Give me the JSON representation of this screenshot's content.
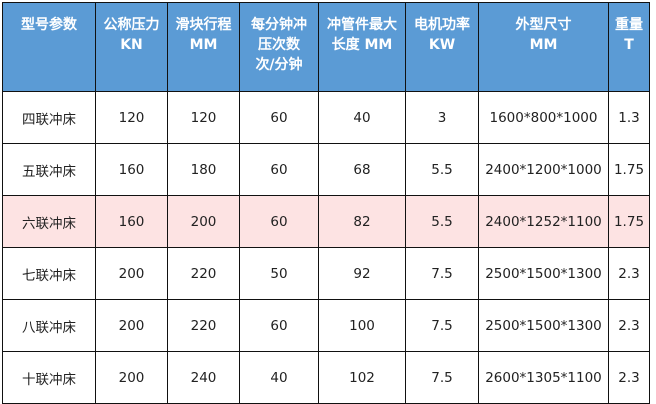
{
  "headers": [
    "型号参数",
    "公称压力\nKN",
    "滑块行程\nMM",
    "每分钟冲\n压次数\n次/分钟",
    "冲管件最大\n长度 MM",
    "电机功率\nKW",
    "外型尺寸\nMM",
    "重量\nT"
  ],
  "header_bg": "#5b9bd5",
  "highlight_bg": "#fde3e3",
  "rows": [
    [
      "四联冲床",
      "120",
      "120",
      "60",
      "40",
      "3",
      "1600*800*1000",
      "1.3"
    ],
    [
      "五联冲床",
      "160",
      "180",
      "60",
      "68",
      "5.5",
      "2400*1200*1000",
      "1.75"
    ],
    [
      "六联冲床",
      "160",
      "200",
      "60",
      "82",
      "5.5",
      "2400*1252*1100",
      "1.75"
    ],
    [
      "七联冲床",
      "200",
      "220",
      "50",
      "92",
      "7.5",
      "2500*1500*1300",
      "2.3"
    ],
    [
      "八联冲床",
      "200",
      "220",
      "60",
      "100",
      "7.5",
      "2500*1500*1300",
      "2.3"
    ],
    [
      "十联冲床",
      "200",
      "240",
      "40",
      "102",
      "7.5",
      "2600*1305*1100",
      "2.3"
    ]
  ],
  "highlighted_row": 2
}
